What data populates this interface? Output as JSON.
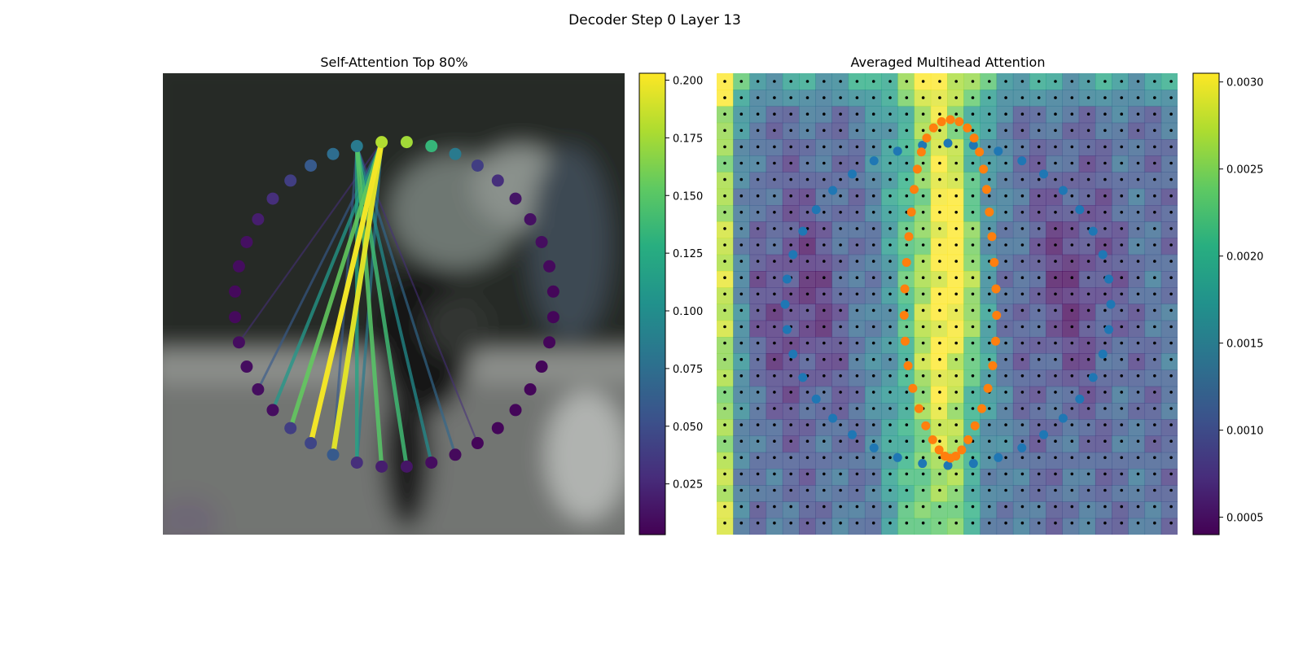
{
  "figure": {
    "suptitle": "Decoder Step 0 Layer 13"
  },
  "chart_data": [
    {
      "type": "scatter",
      "title": "Self-Attention Top 80%",
      "description_of_background": "blurred photo",
      "points_count": 40,
      "point_values": [
        0.18,
        0.175,
        0.135,
        0.085,
        0.04,
        0.03,
        0.015,
        0.012,
        0.01,
        0.008,
        0.006,
        0.006,
        0.006,
        0.006,
        0.006,
        0.006,
        0.006,
        0.006,
        0.008,
        0.01,
        0.015,
        0.02,
        0.03,
        0.06,
        0.045,
        0.04,
        0.01,
        0.01,
        0.01,
        0.01,
        0.008,
        0.008,
        0.01,
        0.012,
        0.02,
        0.03,
        0.04,
        0.06,
        0.075,
        0.085
      ],
      "edges": [
        {
          "from": 0,
          "to": 24,
          "value": 0.2
        },
        {
          "from": 0,
          "to": 23,
          "value": 0.195
        },
        {
          "from": 0,
          "to": 25,
          "value": 0.155
        },
        {
          "from": 0,
          "to": 26,
          "value": 0.11
        },
        {
          "from": 0,
          "to": 22,
          "value": 0.085
        },
        {
          "from": 0,
          "to": 27,
          "value": 0.06
        },
        {
          "from": 39,
          "to": 21,
          "value": 0.15
        },
        {
          "from": 39,
          "to": 20,
          "value": 0.14
        },
        {
          "from": 39,
          "to": 22,
          "value": 0.12
        },
        {
          "from": 39,
          "to": 19,
          "value": 0.1
        },
        {
          "from": 39,
          "to": 18,
          "value": 0.07
        },
        {
          "from": 39,
          "to": 23,
          "value": 0.06
        },
        {
          "from": 0,
          "to": 29,
          "value": 0.03
        },
        {
          "from": 39,
          "to": 17,
          "value": 0.03
        }
      ],
      "colorbar": {
        "min": 0.003,
        "max": 0.203,
        "ticks": [
          "0.025",
          "0.050",
          "0.075",
          "0.100",
          "0.125",
          "0.150",
          "0.175",
          "0.200"
        ],
        "tick_values": [
          0.025,
          0.05,
          0.075,
          0.1,
          0.125,
          0.15,
          0.175,
          0.2
        ],
        "colormap": "viridis"
      }
    },
    {
      "type": "heatmap",
      "title": "Averaged Multihead Attention",
      "grid_size": [
        28,
        28
      ],
      "blue_series_count": 40,
      "orange_series_count": 40,
      "colorbar": {
        "min": 0.0004,
        "max": 0.00305,
        "ticks": [
          "0.0005",
          "0.0010",
          "0.0015",
          "0.0020",
          "0.0025",
          "0.0030"
        ],
        "tick_values": [
          0.0005,
          0.001,
          0.0015,
          0.002,
          0.0025,
          0.003
        ],
        "colormap": "viridis"
      }
    }
  ],
  "colors": {
    "blue_points": "#1f77b4",
    "orange_points": "#ff7f0e",
    "grid_dots": "#000000"
  }
}
